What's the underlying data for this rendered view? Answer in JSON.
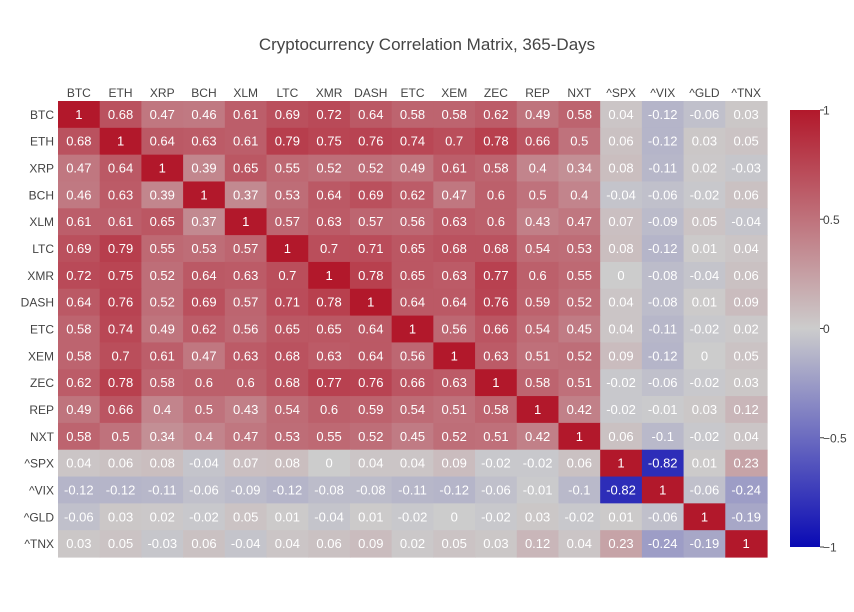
{
  "chart_data": {
    "type": "heatmap",
    "title": "Cryptocurrency Correlation Matrix, 365-Days",
    "xlabel": "",
    "ylabel": "",
    "x": [
      "BTC",
      "ETH",
      "XRP",
      "BCH",
      "XLM",
      "LTC",
      "XMR",
      "DASH",
      "ETC",
      "XEM",
      "ZEC",
      "REP",
      "NXT",
      "^SPX",
      "^VIX",
      "^GLD",
      "^TNX"
    ],
    "y": [
      "BTC",
      "ETH",
      "XRP",
      "BCH",
      "XLM",
      "LTC",
      "XMR",
      "DASH",
      "ETC",
      "XEM",
      "ZEC",
      "REP",
      "NXT",
      "^SPX",
      "^VIX",
      "^GLD",
      "^TNX"
    ],
    "z": [
      [
        1,
        0.68,
        0.47,
        0.46,
        0.61,
        0.69,
        0.72,
        0.64,
        0.58,
        0.58,
        0.62,
        0.49,
        0.58,
        0.04,
        -0.12,
        -0.06,
        0.03
      ],
      [
        0.68,
        1,
        0.64,
        0.63,
        0.61,
        0.79,
        0.75,
        0.76,
        0.74,
        0.7,
        0.78,
        0.66,
        0.5,
        0.06,
        -0.12,
        0.03,
        0.05
      ],
      [
        0.47,
        0.64,
        1,
        0.39,
        0.65,
        0.55,
        0.52,
        0.52,
        0.49,
        0.61,
        0.58,
        0.4,
        0.34,
        0.08,
        -0.11,
        0.02,
        -0.03
      ],
      [
        0.46,
        0.63,
        0.39,
        1,
        0.37,
        0.53,
        0.64,
        0.69,
        0.62,
        0.47,
        0.6,
        0.5,
        0.4,
        -0.04,
        -0.06,
        -0.02,
        0.06
      ],
      [
        0.61,
        0.61,
        0.65,
        0.37,
        1,
        0.57,
        0.63,
        0.57,
        0.56,
        0.63,
        0.6,
        0.43,
        0.47,
        0.07,
        -0.09,
        0.05,
        -0.04
      ],
      [
        0.69,
        0.79,
        0.55,
        0.53,
        0.57,
        1,
        0.7,
        0.71,
        0.65,
        0.68,
        0.68,
        0.54,
        0.53,
        0.08,
        -0.12,
        0.01,
        0.04
      ],
      [
        0.72,
        0.75,
        0.52,
        0.64,
        0.63,
        0.7,
        1,
        0.78,
        0.65,
        0.63,
        0.77,
        0.6,
        0.55,
        0,
        -0.08,
        -0.04,
        0.06
      ],
      [
        0.64,
        0.76,
        0.52,
        0.69,
        0.57,
        0.71,
        0.78,
        1,
        0.64,
        0.64,
        0.76,
        0.59,
        0.52,
        0.04,
        -0.08,
        0.01,
        0.09
      ],
      [
        0.58,
        0.74,
        0.49,
        0.62,
        0.56,
        0.65,
        0.65,
        0.64,
        1,
        0.56,
        0.66,
        0.54,
        0.45,
        0.04,
        -0.11,
        -0.02,
        0.02
      ],
      [
        0.58,
        0.7,
        0.61,
        0.47,
        0.63,
        0.68,
        0.63,
        0.64,
        0.56,
        1,
        0.63,
        0.51,
        0.52,
        0.09,
        -0.12,
        0,
        0.05
      ],
      [
        0.62,
        0.78,
        0.58,
        0.6,
        0.6,
        0.68,
        0.77,
        0.76,
        0.66,
        0.63,
        1,
        0.58,
        0.51,
        -0.02,
        -0.06,
        -0.02,
        0.03
      ],
      [
        0.49,
        0.66,
        0.4,
        0.5,
        0.43,
        0.54,
        0.6,
        0.59,
        0.54,
        0.51,
        0.58,
        1,
        0.42,
        -0.02,
        -0.01,
        0.03,
        0.12
      ],
      [
        0.58,
        0.5,
        0.34,
        0.4,
        0.47,
        0.53,
        0.55,
        0.52,
        0.45,
        0.52,
        0.51,
        0.42,
        1,
        0.06,
        -0.1,
        -0.02,
        0.04
      ],
      [
        0.04,
        0.06,
        0.08,
        -0.04,
        0.07,
        0.08,
        0,
        0.04,
        0.04,
        0.09,
        -0.02,
        -0.02,
        0.06,
        1,
        -0.82,
        0.01,
        0.23
      ],
      [
        -0.12,
        -0.12,
        -0.11,
        -0.06,
        -0.09,
        -0.12,
        -0.08,
        -0.08,
        -0.11,
        -0.12,
        -0.06,
        -0.01,
        -0.1,
        -0.82,
        1,
        -0.06,
        -0.24
      ],
      [
        -0.06,
        0.03,
        0.02,
        -0.02,
        0.05,
        0.01,
        -0.04,
        0.01,
        -0.02,
        0,
        -0.02,
        0.03,
        -0.02,
        0.01,
        -0.06,
        1,
        -0.19
      ],
      [
        0.03,
        0.05,
        -0.03,
        0.06,
        -0.04,
        0.04,
        0.06,
        0.09,
        0.02,
        0.05,
        0.03,
        0.12,
        0.04,
        0.23,
        -0.24,
        -0.19,
        1
      ]
    ],
    "zlim": [
      -1,
      1
    ],
    "colorscale": "coolwarm",
    "colorscale_stops": [
      "#0a0ab4",
      "#cccccc",
      "#b2182b"
    ],
    "colorbar": {
      "ticks": [
        1,
        0.5,
        0,
        -0.5,
        -1
      ],
      "tick_labels": [
        "1",
        "0.5",
        "0",
        "−0.5",
        "−1"
      ]
    },
    "xaxis_side": "top",
    "y_order": "top-to-bottom",
    "grid": false,
    "show_cell_values": true
  }
}
